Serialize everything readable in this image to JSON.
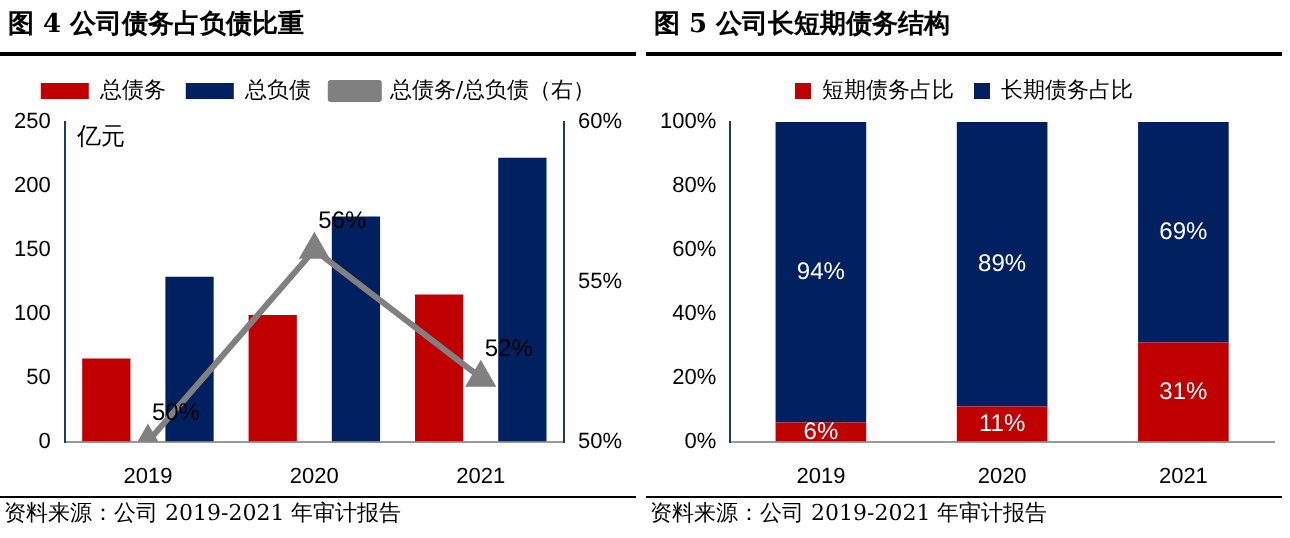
{
  "chart_data": [
    {
      "type": "bar",
      "title": "图 4  公司债务占负债比重",
      "categories": [
        "2019",
        "2020",
        "2021"
      ],
      "ylabel": "亿元",
      "ylim": [
        0,
        250
      ],
      "yticks": [
        0,
        50,
        100,
        150,
        200,
        250
      ],
      "y2lim": [
        50,
        60
      ],
      "y2ticks": [
        {
          "value": 50,
          "label": "50%"
        },
        {
          "value": 55,
          "label": "55%"
        },
        {
          "value": 60,
          "label": "60%"
        }
      ],
      "legend": "top",
      "series": [
        {
          "name": "总债务",
          "color": "#c00000",
          "values": [
            65,
            99,
            115
          ]
        },
        {
          "name": "总负债",
          "color": "#002060",
          "values": [
            129,
            176,
            222
          ]
        },
        {
          "name": "总债务/总负债（右）",
          "type": "line",
          "axis": "y2",
          "marker": "triangle",
          "color": "#808080",
          "values": [
            50,
            56,
            52
          ],
          "value_labels": [
            "50%",
            "56%",
            "52%"
          ]
        }
      ],
      "annotations": [
        "资料来源：公司 2019-2021 年审计报告"
      ]
    },
    {
      "type": "bar",
      "title": "图 5 公司长短期债务结构",
      "categories": [
        "2019",
        "2020",
        "2021"
      ],
      "stacked": true,
      "ylim": [
        0,
        100
      ],
      "yticks": [
        {
          "value": 0,
          "label": "0%"
        },
        {
          "value": 20,
          "label": "20%"
        },
        {
          "value": 40,
          "label": "40%"
        },
        {
          "value": 60,
          "label": "60%"
        },
        {
          "value": 80,
          "label": "80%"
        },
        {
          "value": 100,
          "label": "100%"
        }
      ],
      "legend": "top",
      "series": [
        {
          "name": "短期债务占比",
          "color": "#c00000",
          "values": [
            6,
            11,
            31
          ],
          "value_labels": [
            "6%",
            "11%",
            "31%"
          ]
        },
        {
          "name": "长期债务占比",
          "color": "#002060",
          "values": [
            94,
            89,
            69
          ],
          "value_labels": [
            "94%",
            "89%",
            "69%"
          ]
        }
      ],
      "annotations": [
        "资料来源：公司 2019-2021 年审计报告"
      ]
    }
  ]
}
